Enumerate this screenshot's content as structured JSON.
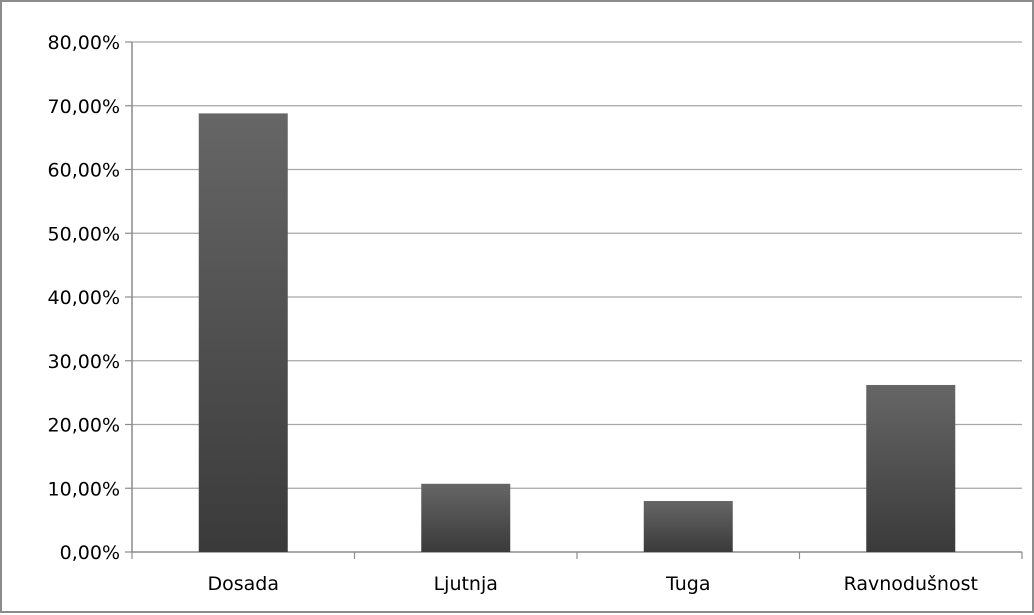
{
  "chart_data": {
    "type": "bar",
    "categories": [
      "Dosada",
      "Ljutnja",
      "Tuga",
      "Ravnodušnost"
    ],
    "values": [
      68.8,
      10.7,
      8.0,
      26.2
    ],
    "ylim": [
      0,
      80
    ],
    "yticks": [
      0,
      10,
      20,
      30,
      40,
      50,
      60,
      70,
      80
    ],
    "ytick_labels": [
      "0,00%",
      "10,00%",
      "20,00%",
      "30,00%",
      "40,00%",
      "50,00%",
      "60,00%",
      "70,00%",
      "80,00%"
    ],
    "grid": true,
    "legend": "none",
    "colors": {
      "bar_top": "#666666",
      "bar_bottom": "#3a3a3a",
      "grid": "#a6a6a6",
      "axis": "#8c8c8c"
    }
  }
}
